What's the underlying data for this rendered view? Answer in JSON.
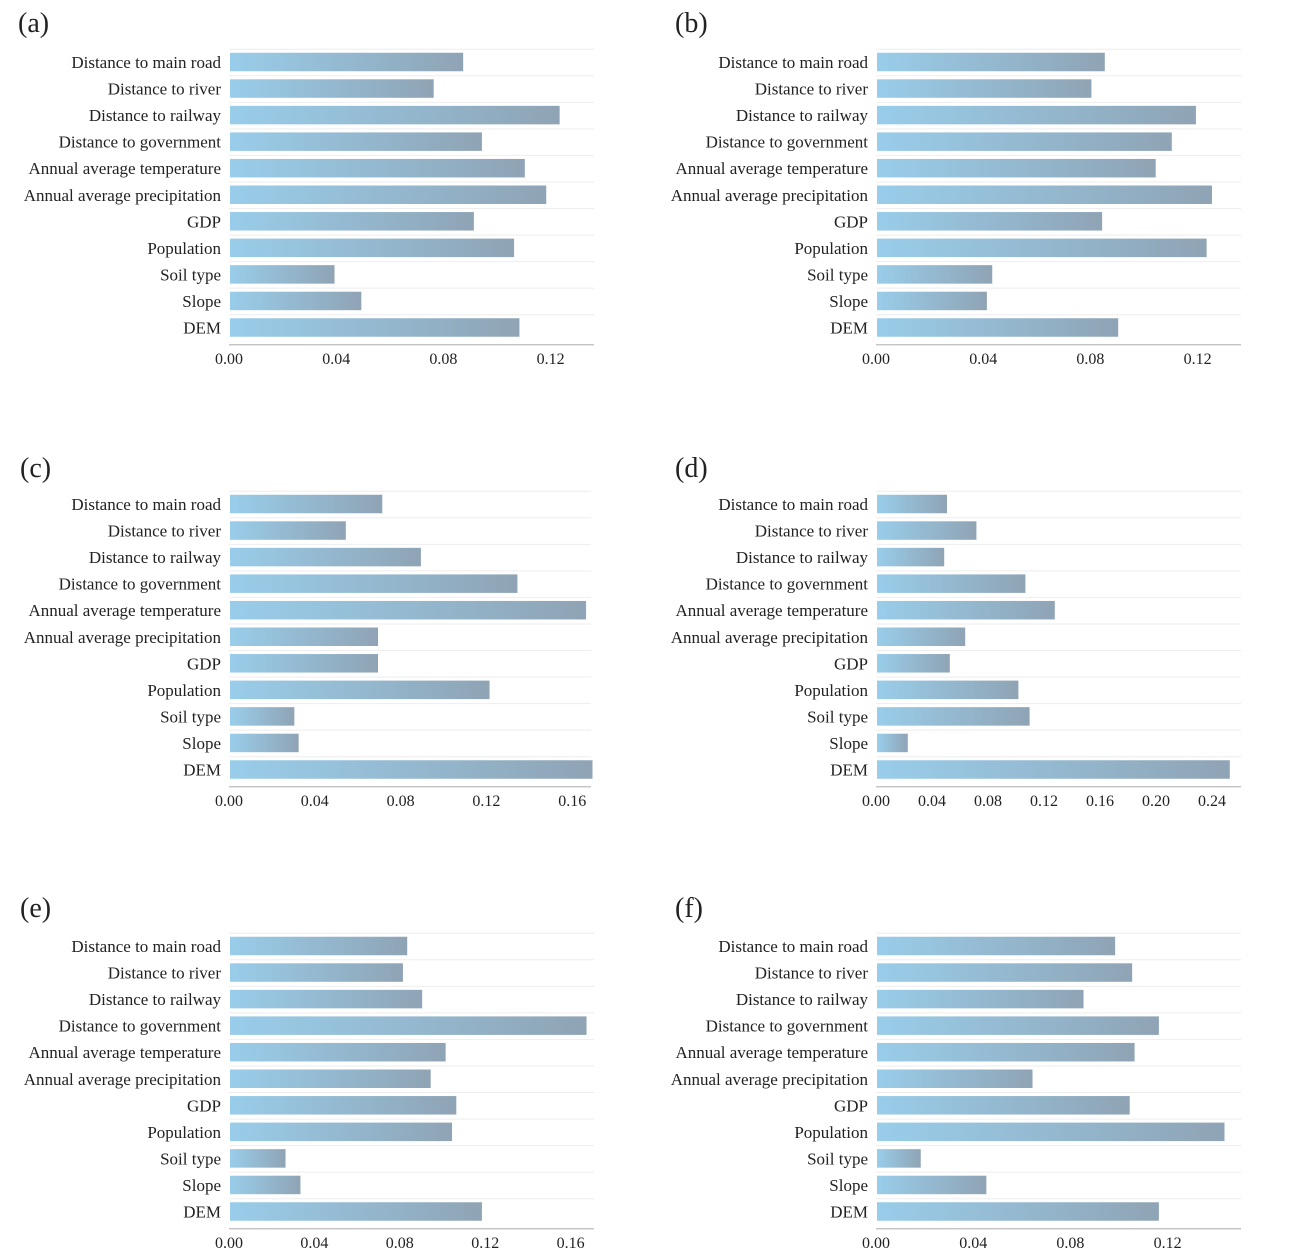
{
  "chart_data": [
    {
      "type": "bar",
      "orientation": "horizontal",
      "panel_label": "(a)",
      "categories": [
        "Distance to main road",
        "Distance to river",
        "Distance to railway",
        "Distance to government",
        "Annual average temperature",
        "Annual average precipitation",
        "GDP",
        "Population",
        "Soil type",
        "Slope",
        "DEM"
      ],
      "values": [
        0.087,
        0.076,
        0.123,
        0.094,
        0.11,
        0.118,
        0.091,
        0.106,
        0.039,
        0.049,
        0.108
      ],
      "xticks": [
        "0.00",
        "0.04",
        "0.08",
        "0.12"
      ],
      "xlim": [
        0,
        0.136
      ],
      "grid": true
    },
    {
      "type": "bar",
      "orientation": "horizontal",
      "panel_label": "(b)",
      "categories": [
        "Distance to main road",
        "Distance to river",
        "Distance to railway",
        "Distance to government",
        "Annual average temperature",
        "Annual average precipitation",
        "GDP",
        "Population",
        "Soil type",
        "Slope",
        "DEM"
      ],
      "values": [
        0.085,
        0.08,
        0.119,
        0.11,
        0.104,
        0.125,
        0.084,
        0.123,
        0.043,
        0.041,
        0.09
      ],
      "xticks": [
        "0.00",
        "0.04",
        "0.08",
        "0.12"
      ],
      "xlim": [
        0,
        0.136
      ],
      "grid": true
    },
    {
      "type": "bar",
      "orientation": "horizontal",
      "panel_label": "(c)",
      "categories": [
        "Distance to main road",
        "Distance to river",
        "Distance to railway",
        "Distance to government",
        "Annual average temperature",
        "Annual average precipitation",
        "GDP",
        "Population",
        "Soil type",
        "Slope",
        "DEM"
      ],
      "values": [
        0.071,
        0.054,
        0.089,
        0.134,
        0.166,
        0.069,
        0.069,
        0.121,
        0.03,
        0.032,
        0.169
      ],
      "xticks": [
        "0.00",
        "0.04",
        "0.08",
        "0.12",
        "0.16"
      ],
      "xlim": [
        0,
        0.17
      ],
      "grid": true
    },
    {
      "type": "bar",
      "orientation": "horizontal",
      "panel_label": "(d)",
      "categories": [
        "Distance to main road",
        "Distance to river",
        "Distance to railway",
        "Distance to government",
        "Annual average temperature",
        "Annual average precipitation",
        "GDP",
        "Population",
        "Soil type",
        "Slope",
        "DEM"
      ],
      "values": [
        0.05,
        0.071,
        0.048,
        0.106,
        0.127,
        0.063,
        0.052,
        0.101,
        0.109,
        0.022,
        0.252
      ],
      "xticks": [
        "0.00",
        "0.04",
        "0.08",
        "0.12",
        "0.16",
        "0.20",
        "0.24"
      ],
      "xlim": [
        0,
        0.262
      ],
      "grid": true
    },
    {
      "type": "bar",
      "orientation": "horizontal",
      "panel_label": "(e)",
      "categories": [
        "Distance to main road",
        "Distance to river",
        "Distance to railway",
        "Distance to government",
        "Annual average temperature",
        "Annual average precipitation",
        "GDP",
        "Population",
        "Soil type",
        "Slope",
        "DEM"
      ],
      "values": [
        0.083,
        0.081,
        0.09,
        0.167,
        0.101,
        0.094,
        0.106,
        0.104,
        0.026,
        0.033,
        0.118
      ],
      "xticks": [
        "0.00",
        "0.04",
        "0.08",
        "0.12",
        "0.16"
      ],
      "xlim": [
        0,
        0.171
      ],
      "grid": true
    },
    {
      "type": "bar",
      "orientation": "horizontal",
      "panel_label": "(f)",
      "categories": [
        "Distance to main road",
        "Distance to river",
        "Distance to railway",
        "Distance to government",
        "Annual average temperature",
        "Annual average precipitation",
        "GDP",
        "Population",
        "Soil type",
        "Slope",
        "DEM"
      ],
      "values": [
        0.098,
        0.105,
        0.085,
        0.116,
        0.106,
        0.064,
        0.104,
        0.143,
        0.018,
        0.045,
        0.116
      ],
      "xticks": [
        "0.00",
        "0.04",
        "0.08",
        "0.12"
      ],
      "xlim": [
        0,
        0.15
      ],
      "grid": true
    }
  ],
  "colors": {
    "bar_start": "#99cdea",
    "bar_end": "#8fa4b5",
    "text": "#222222",
    "axis": "#bbbbbb",
    "grid": "#eeeeee"
  }
}
